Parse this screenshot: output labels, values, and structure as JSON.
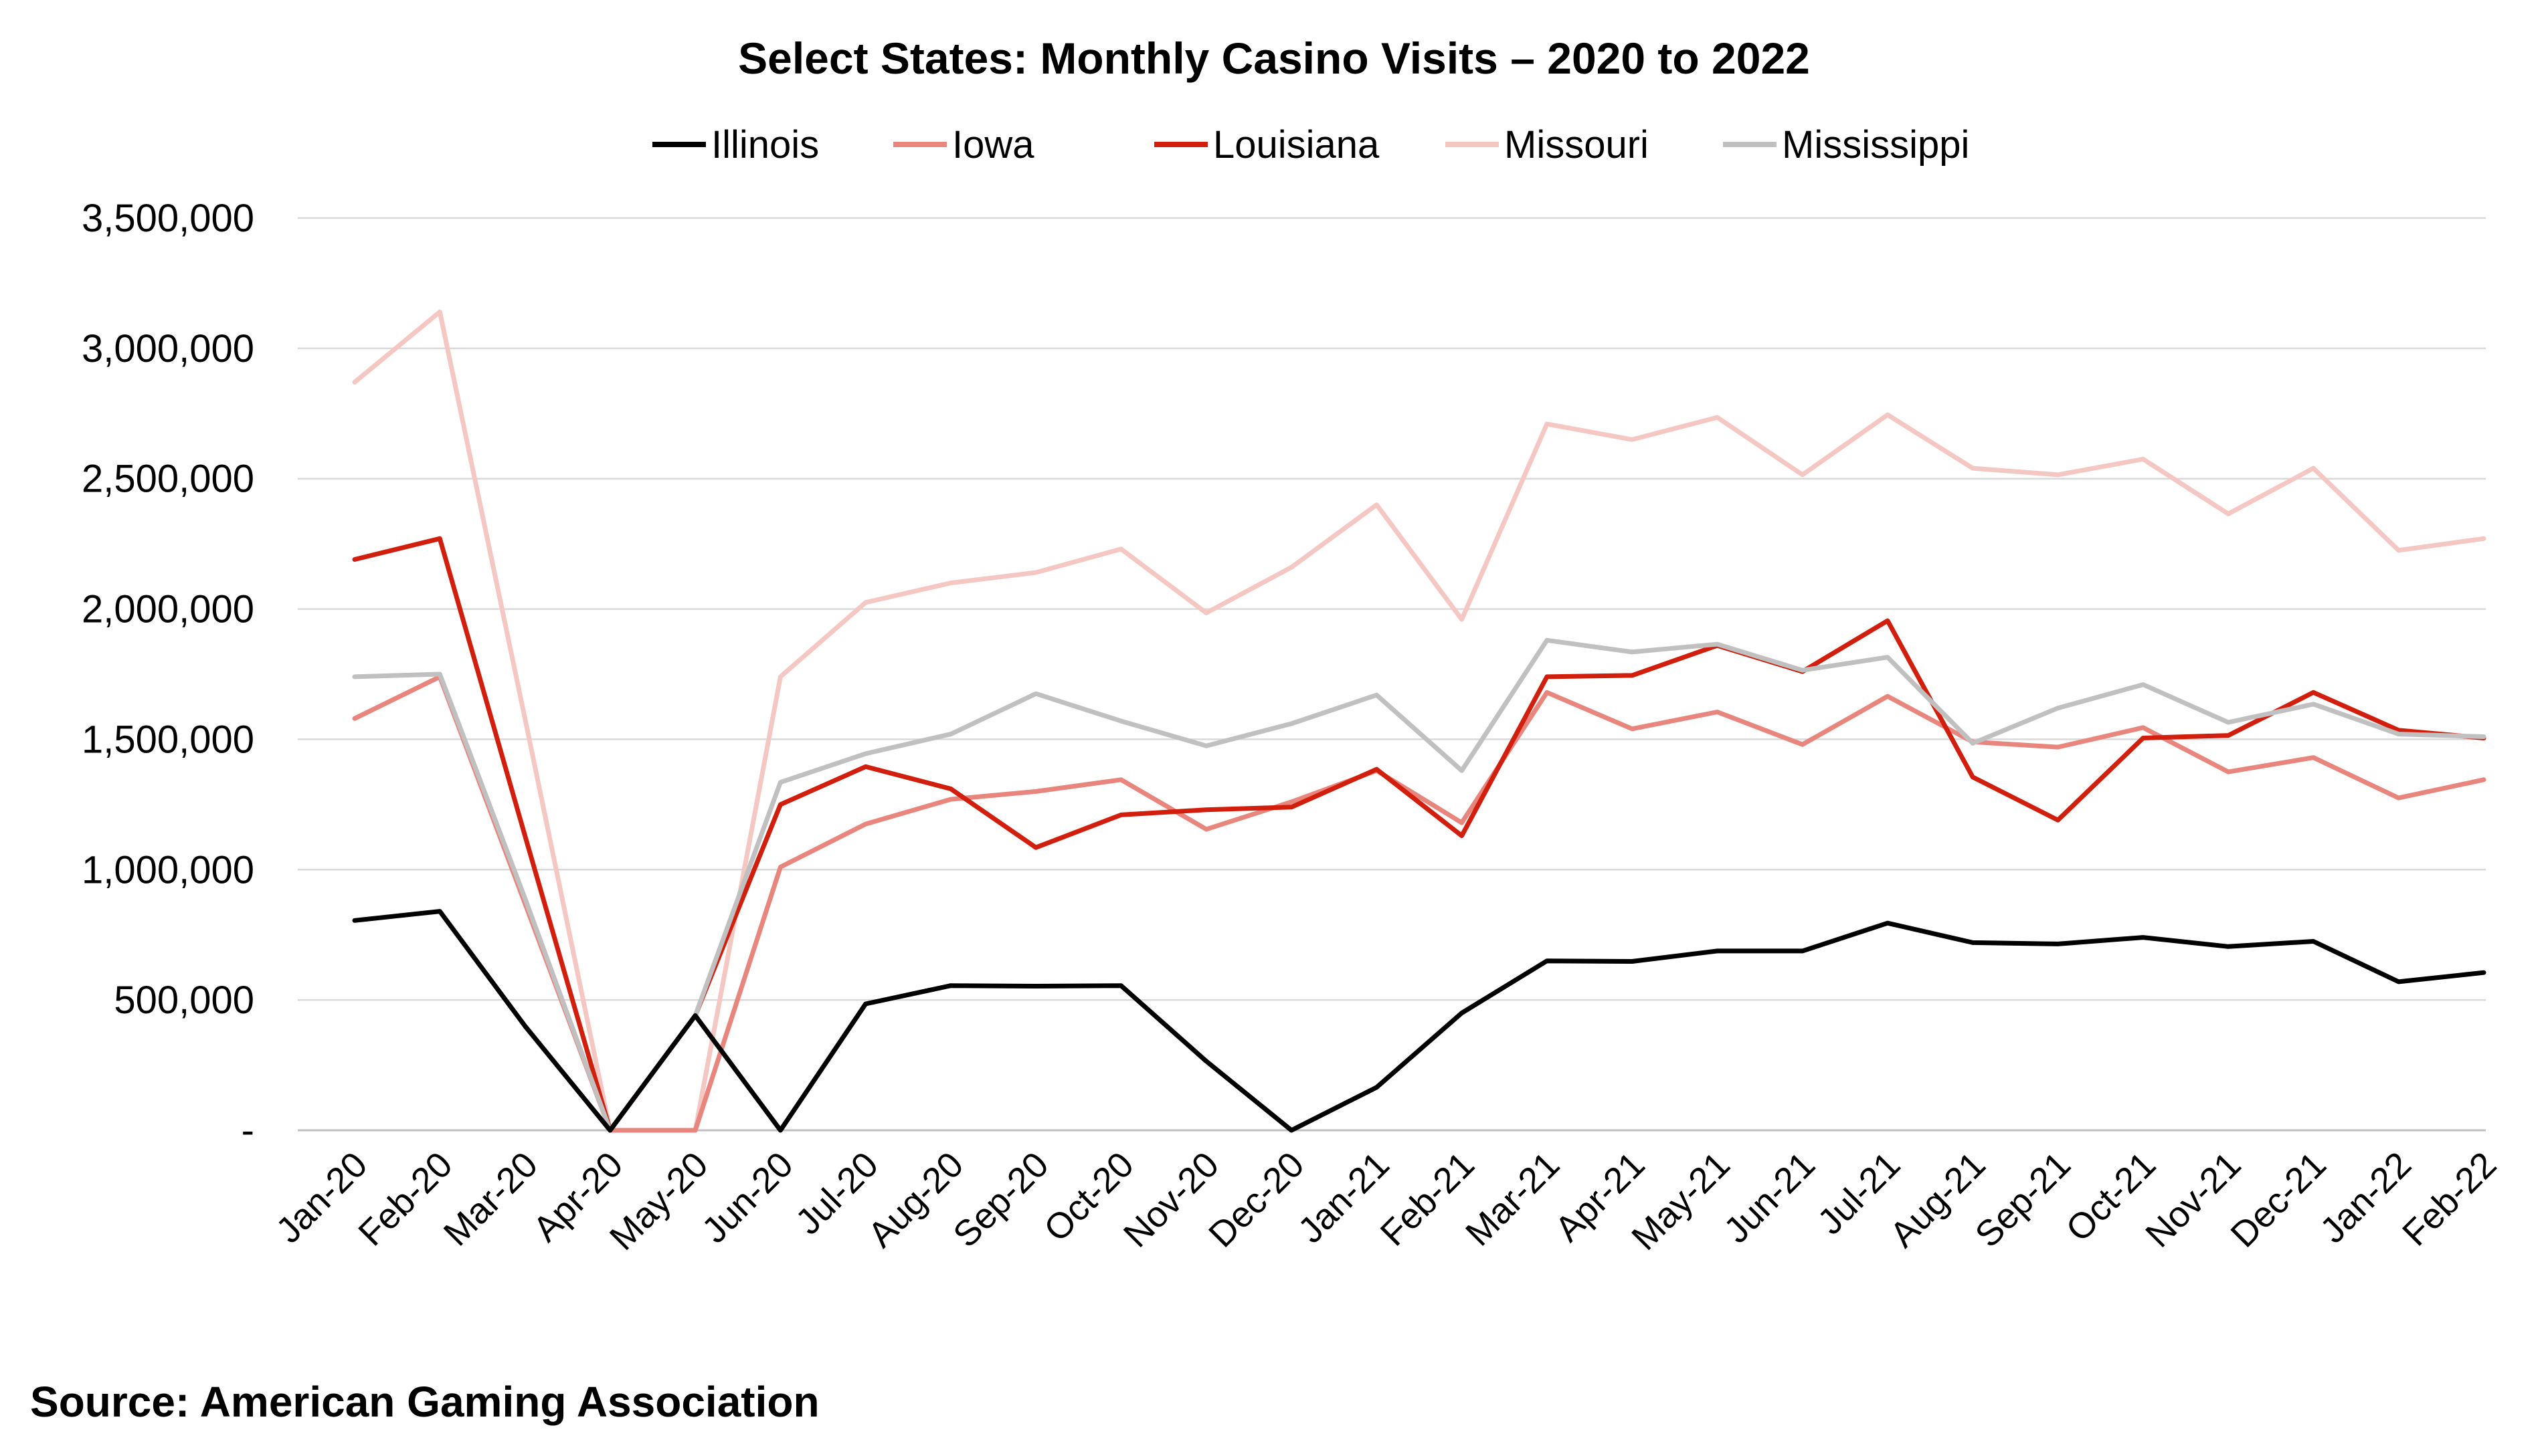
{
  "chart_data": {
    "type": "line",
    "title": "Select States: Monthly Casino Visits – 2020 to 2022",
    "xlabel": "",
    "ylabel": "",
    "categories": [
      "Jan-20",
      "Feb-20",
      "Mar-20",
      "Apr-20",
      "May-20",
      "Jun-20",
      "Jul-20",
      "Aug-20",
      "Sep-20",
      "Oct-20",
      "Nov-20",
      "Dec-20",
      "Jan-21",
      "Feb-21",
      "Mar-21",
      "Apr-21",
      "May-21",
      "Jun-21",
      "Jul-21",
      "Aug-21",
      "Sep-21",
      "Oct-21",
      "Nov-21",
      "Dec-21",
      "Jan-22",
      "Feb-22"
    ],
    "ylim": [
      0,
      3500000
    ],
    "y_ticks": [
      0,
      500000,
      1000000,
      1500000,
      2000000,
      2500000,
      3000000,
      3500000
    ],
    "y_tick_labels": [
      "-",
      "500,000",
      "1,000,000",
      "1,500,000",
      "2,000,000",
      "2,500,000",
      "3,000,000",
      "3,500,000"
    ],
    "grid": true,
    "legend_position": "top",
    "series": [
      {
        "name": "Illinois",
        "color": "#000000",
        "values": [
          805000,
          840000,
          400000,
          0,
          440000,
          0,
          485000,
          555000,
          553000,
          555000,
          265000,
          0,
          165000,
          450000,
          650000,
          648000,
          688000,
          688000,
          795000,
          720000,
          715000,
          740000,
          705000,
          725000,
          570000,
          605000
        ]
      },
      {
        "name": "Iowa",
        "color": "#E8867D",
        "values": [
          1580000,
          1740000,
          870000,
          0,
          0,
          1010000,
          1175000,
          1270000,
          1300000,
          1345000,
          1155000,
          1260000,
          1380000,
          1180000,
          1680000,
          1540000,
          1605000,
          1480000,
          1665000,
          1490000,
          1470000,
          1545000,
          1375000,
          1430000,
          1275000,
          1345000
        ]
      },
      {
        "name": "Louisiana",
        "color": "#D21F0D",
        "values": [
          2190000,
          2270000,
          1130000,
          0,
          440000,
          1250000,
          1395000,
          1310000,
          1085000,
          1210000,
          1230000,
          1240000,
          1385000,
          1130000,
          1740000,
          1745000,
          1860000,
          1760000,
          1955000,
          1355000,
          1190000,
          1505000,
          1515000,
          1680000,
          1535000,
          1505000
        ]
      },
      {
        "name": "Missouri",
        "color": "#F5C7C2",
        "values": [
          2870000,
          3140000,
          1580000,
          0,
          0,
          1740000,
          2025000,
          2100000,
          2140000,
          2230000,
          1985000,
          2160000,
          2400000,
          1960000,
          2710000,
          2650000,
          2735000,
          2515000,
          2745000,
          2540000,
          2515000,
          2575000,
          2365000,
          2540000,
          2225000,
          2270000
        ]
      },
      {
        "name": "Mississippi",
        "color": "#C0C0C0",
        "values": [
          1740000,
          1750000,
          890000,
          0,
          440000,
          1335000,
          1445000,
          1520000,
          1675000,
          1570000,
          1475000,
          1560000,
          1670000,
          1380000,
          1880000,
          1835000,
          1865000,
          1765000,
          1815000,
          1485000,
          1620000,
          1710000,
          1565000,
          1635000,
          1520000,
          1510000
        ]
      }
    ],
    "source": "Source: American Gaming Association"
  }
}
